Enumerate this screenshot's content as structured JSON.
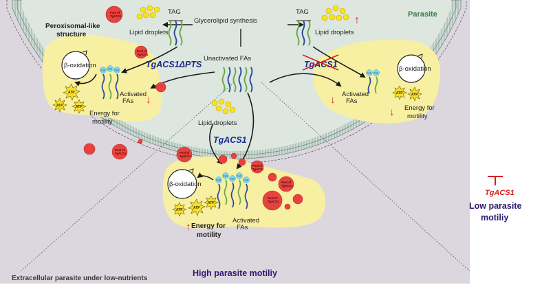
{
  "labels": {
    "parasite": "Parasite",
    "glycerolipid": "Glycerolipid synthesis",
    "tag_left": "TAG",
    "tag_right": "TAG",
    "lipid_left": "Lipid droplets",
    "lipid_right": "Lipid droplets",
    "lipid_center": "Lipid droplets",
    "perox_1": "Peroxisomal-like",
    "perox_2": "structure",
    "unactivated": "Unactivated FAs",
    "acs1_dpts": "TgACS1ΔPTS",
    "acs1_crossed": "TgACS1",
    "acs1_center": "TgACS1",
    "beta_ox": "β-oxidation",
    "activated_1": "Activated",
    "activated_2": "FAs",
    "energy_1": "Energy for",
    "energy_2": "motility",
    "energy_center_1": "Energy for",
    "energy_center_2": "motility",
    "acs1_inhib": "TgACS1",
    "low_1": "Low parasite",
    "low_2": "motiliy",
    "high": "High parasite motiliy",
    "extracellular": "Extracellular parasite under low-nutrients",
    "pool_1": "Pool of",
    "pool_2": "TgACS1",
    "coa": "CoA",
    "atp": "ATP",
    "up_arrow": "↑",
    "down_arrow": "↓"
  },
  "colors": {
    "background": "#dcd6df",
    "cytoplasm": "#dde7e0",
    "membrane": "#8aa39a",
    "peroxisome": "#f7efa1",
    "pool": "#e8423f",
    "droplet": "#f8e21a",
    "coa": "#7fd6ec",
    "accent_red": "#d42020",
    "accent_blue": "#1b2a8c",
    "accent_purple": "#2e1a6e"
  }
}
